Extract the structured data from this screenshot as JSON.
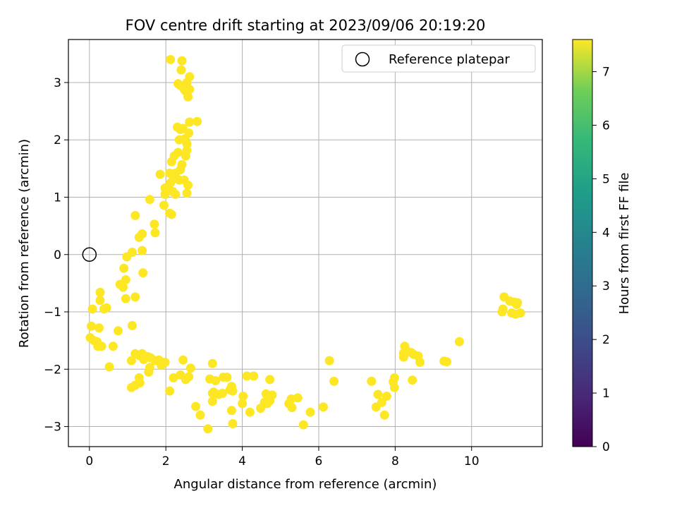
{
  "chart_data": {
    "type": "scatter",
    "title": "FOV centre drift starting at 2023/09/06 20:19:20",
    "xlabel": "Angular distance from reference (arcmin)",
    "ylabel": "Rotation from reference (arcmin)",
    "xlim": [
      -0.55,
      11.85
    ],
    "ylim": [
      -3.35,
      3.75
    ],
    "xticks": [
      0,
      2,
      4,
      6,
      8,
      10
    ],
    "yticks": [
      -3,
      -2,
      -1,
      0,
      1,
      2,
      3
    ],
    "grid": true,
    "legend": {
      "position": "top-right",
      "entries": [
        "Reference platepar"
      ]
    },
    "reference_point": {
      "x": 0,
      "y": 0,
      "marker": "open-circle"
    },
    "colorbar": {
      "label": "Hours from first FF file",
      "colormap": "viridis",
      "range": [
        0,
        7.6
      ],
      "ticks": [
        0,
        1,
        2,
        3,
        4,
        5,
        6,
        7
      ]
    },
    "series": [
      {
        "columns": [
          "x",
          "y",
          "hours"
        ],
        "points": [
          [
            10.85,
            -0.74
          ],
          [
            11.0,
            -0.81
          ],
          [
            11.12,
            -0.83
          ],
          [
            11.2,
            -0.84
          ],
          [
            10.82,
            -0.95
          ],
          [
            10.8,
            -1.0
          ],
          [
            11.05,
            -1.02
          ],
          [
            11.15,
            -1.04
          ],
          [
            11.28,
            -1.02
          ],
          [
            11.18,
            -0.87
          ],
          [
            9.68,
            -1.52
          ],
          [
            9.28,
            -1.86
          ],
          [
            9.35,
            -1.87
          ],
          [
            8.25,
            -1.6
          ],
          [
            8.22,
            -1.72
          ],
          [
            8.22,
            -1.79
          ],
          [
            8.3,
            -1.68
          ],
          [
            8.42,
            -1.71
          ],
          [
            8.48,
            -1.74
          ],
          [
            8.6,
            -1.77
          ],
          [
            8.65,
            -1.88
          ],
          [
            8.45,
            -2.19
          ],
          [
            7.98,
            -2.15
          ],
          [
            7.95,
            -2.22
          ],
          [
            7.98,
            -2.32
          ],
          [
            7.78,
            -2.47
          ],
          [
            7.55,
            -2.44
          ],
          [
            7.65,
            -2.58
          ],
          [
            7.5,
            -2.66
          ],
          [
            7.72,
            -2.8
          ],
          [
            7.38,
            -2.21
          ],
          [
            6.28,
            -1.85
          ],
          [
            6.4,
            -2.21
          ],
          [
            6.12,
            -2.66
          ],
          [
            5.78,
            -2.75
          ],
          [
            5.6,
            -2.97
          ],
          [
            5.45,
            -2.5
          ],
          [
            5.28,
            -2.52
          ],
          [
            5.22,
            -2.6
          ],
          [
            5.3,
            -2.67
          ],
          [
            4.78,
            -2.45
          ],
          [
            4.62,
            -2.43
          ],
          [
            4.72,
            -2.55
          ],
          [
            4.58,
            -2.58
          ],
          [
            4.65,
            -2.6
          ],
          [
            4.48,
            -2.68
          ],
          [
            4.72,
            -2.18
          ],
          [
            4.3,
            -2.12
          ],
          [
            4.12,
            -2.12
          ],
          [
            4.02,
            -2.47
          ],
          [
            4.2,
            -2.75
          ],
          [
            3.72,
            -2.3
          ],
          [
            3.75,
            -2.38
          ],
          [
            3.6,
            -2.14
          ],
          [
            3.68,
            -2.36
          ],
          [
            3.72,
            -2.72
          ],
          [
            3.75,
            -2.95
          ],
          [
            3.5,
            -2.14
          ],
          [
            3.48,
            -2.42
          ],
          [
            3.38,
            -2.44
          ],
          [
            3.25,
            -2.4
          ],
          [
            3.3,
            -2.2
          ],
          [
            3.15,
            -2.17
          ],
          [
            3.22,
            -2.42
          ],
          [
            3.22,
            -2.56
          ],
          [
            3.1,
            -3.04
          ],
          [
            2.9,
            -2.8
          ],
          [
            2.78,
            -2.65
          ],
          [
            3.22,
            -1.9
          ],
          [
            2.6,
            -2.13
          ],
          [
            2.52,
            -2.18
          ],
          [
            2.38,
            -2.1
          ],
          [
            2.45,
            -1.84
          ],
          [
            2.65,
            -1.98
          ],
          [
            2.2,
            -2.15
          ],
          [
            2.1,
            -2.38
          ],
          [
            4.0,
            -2.6
          ],
          [
            1.98,
            -1.88
          ],
          [
            1.88,
            -1.93
          ],
          [
            1.82,
            -1.84
          ],
          [
            1.72,
            -1.85
          ],
          [
            1.6,
            -1.8
          ],
          [
            1.55,
            -2.05
          ],
          [
            1.58,
            -1.97
          ],
          [
            1.42,
            -1.83
          ],
          [
            1.38,
            -1.73
          ],
          [
            1.52,
            -1.78
          ],
          [
            1.3,
            -1.76
          ],
          [
            1.2,
            -1.73
          ],
          [
            1.3,
            -2.15
          ],
          [
            1.32,
            -2.24
          ],
          [
            1.2,
            -2.28
          ],
          [
            1.1,
            -2.32
          ],
          [
            1.1,
            -1.85
          ],
          [
            0.52,
            -1.96
          ],
          [
            0.62,
            -1.6
          ],
          [
            0.32,
            -1.6
          ],
          [
            0.22,
            -1.6
          ],
          [
            0.2,
            -1.52
          ],
          [
            0.12,
            -1.5
          ],
          [
            0.02,
            -1.45
          ],
          [
            0.25,
            -1.28
          ],
          [
            0.05,
            -1.25
          ],
          [
            1.12,
            -1.24
          ],
          [
            0.75,
            -1.33
          ],
          [
            0.08,
            -0.95
          ],
          [
            0.38,
            -0.95
          ],
          [
            0.45,
            -0.93
          ],
          [
            0.28,
            -0.8
          ],
          [
            0.28,
            -0.66
          ],
          [
            0.95,
            -0.77
          ],
          [
            1.2,
            -0.74
          ],
          [
            0.8,
            -0.52
          ],
          [
            0.88,
            -0.57
          ],
          [
            0.95,
            -0.44
          ],
          [
            0.9,
            -0.24
          ],
          [
            1.4,
            -0.32
          ],
          [
            0.98,
            -0.04
          ],
          [
            1.12,
            0.04
          ],
          [
            1.38,
            0.07
          ],
          [
            1.3,
            0.3
          ],
          [
            1.38,
            0.36
          ],
          [
            1.72,
            0.38
          ],
          [
            1.7,
            0.53
          ],
          [
            1.2,
            0.68
          ],
          [
            1.58,
            0.96
          ],
          [
            1.95,
            0.86
          ],
          [
            2.1,
            0.72
          ],
          [
            2.15,
            0.7
          ],
          [
            1.98,
            1.05
          ],
          [
            2.05,
            1.15
          ],
          [
            2.18,
            1.1
          ],
          [
            1.98,
            1.16
          ],
          [
            2.12,
            1.25
          ],
          [
            2.2,
            1.32
          ],
          [
            2.25,
            1.05
          ],
          [
            2.35,
            1.3
          ],
          [
            2.48,
            1.3
          ],
          [
            2.55,
            1.07
          ],
          [
            2.58,
            1.21
          ],
          [
            2.1,
            1.42
          ],
          [
            1.85,
            1.4
          ],
          [
            2.25,
            1.42
          ],
          [
            2.38,
            1.48
          ],
          [
            2.42,
            1.57
          ],
          [
            2.15,
            1.62
          ],
          [
            2.22,
            1.72
          ],
          [
            2.32,
            1.78
          ],
          [
            2.52,
            1.72
          ],
          [
            2.55,
            1.82
          ],
          [
            2.5,
            2.02
          ],
          [
            2.55,
            1.93
          ],
          [
            2.6,
            2.12
          ],
          [
            2.35,
            2.0
          ],
          [
            2.38,
            2.18
          ],
          [
            2.3,
            2.22
          ],
          [
            2.45,
            2.2
          ],
          [
            2.62,
            2.31
          ],
          [
            2.82,
            2.32
          ],
          [
            2.48,
            2.88
          ],
          [
            2.38,
            2.95
          ],
          [
            2.32,
            2.98
          ],
          [
            2.45,
            2.93
          ],
          [
            2.52,
            2.85
          ],
          [
            2.58,
            2.75
          ],
          [
            2.62,
            2.88
          ],
          [
            2.55,
            3.0
          ],
          [
            2.62,
            3.1
          ],
          [
            2.4,
            3.22
          ],
          [
            2.12,
            3.4
          ],
          [
            2.42,
            3.38
          ]
        ]
      }
    ]
  }
}
